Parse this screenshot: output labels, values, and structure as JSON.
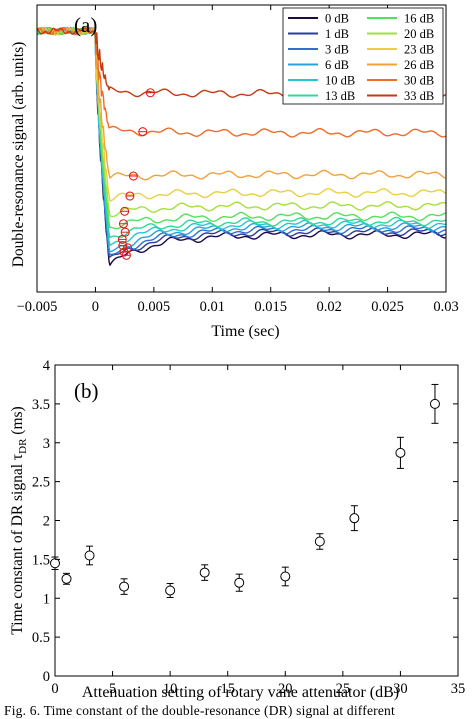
{
  "chart_data": [
    {
      "type": "line",
      "panel_label": "(a)",
      "xlabel": "Time (sec)",
      "ylabel": "Double-resonance signal (arb. units)",
      "xlim": [
        -0.005,
        0.03
      ],
      "x_ticks": [
        "−0.005",
        "0",
        "0.005",
        "0.01",
        "0.015",
        "0.02",
        "0.025",
        "0.03"
      ],
      "x_tick_values": [
        -0.005,
        0,
        0.005,
        0.01,
        0.015,
        0.02,
        0.025,
        0.03
      ],
      "ylim": [
        -1.0,
        0.1
      ],
      "y_ticks_shown": false,
      "grid": false,
      "legend": "top-right",
      "baseline": 0.0,
      "series": [
        {
          "name": "0 dB",
          "color": "#1a0a4a",
          "min": -0.9,
          "final": -0.78,
          "tau_ms": 1.45
        },
        {
          "name": "1 dB",
          "color": "#2b3d9e",
          "min": -0.88,
          "final": -0.77,
          "tau_ms": 1.25
        },
        {
          "name": "3 dB",
          "color": "#2f6fd1",
          "min": -0.87,
          "final": -0.76,
          "tau_ms": 1.55
        },
        {
          "name": "6 dB",
          "color": "#2aa0e0",
          "min": -0.85,
          "final": -0.75,
          "tau_ms": 1.15
        },
        {
          "name": "10 dB",
          "color": "#26c6d0",
          "min": -0.82,
          "final": -0.74,
          "tau_ms": 1.1
        },
        {
          "name": "13 dB",
          "color": "#2fd89a",
          "min": -0.79,
          "final": -0.73,
          "tau_ms": 1.35
        },
        {
          "name": "16 dB",
          "color": "#55e05a",
          "min": -0.75,
          "final": -0.71,
          "tau_ms": 1.2
        },
        {
          "name": "20 dB",
          "color": "#a4e03a",
          "min": -0.7,
          "final": -0.67,
          "tau_ms": 1.3
        },
        {
          "name": "23 dB",
          "color": "#e8d040",
          "min": -0.64,
          "final": -0.62,
          "tau_ms": 1.75
        },
        {
          "name": "26 dB",
          "color": "#f4a03a",
          "min": -0.56,
          "final": -0.55,
          "tau_ms": 2.05
        },
        {
          "name": "30 dB",
          "color": "#f06a28",
          "min": -0.38,
          "final": -0.39,
          "tau_ms": 2.85
        },
        {
          "name": "33 dB",
          "color": "#c03a12",
          "min": -0.23,
          "final": -0.24,
          "tau_ms": 3.5
        }
      ]
    },
    {
      "type": "scatter",
      "panel_label": "(b)",
      "xlabel": "Attenuation setting of rotary vane attenuator (dB)",
      "ylabel": "Time constant of DR signal τ",
      "ylabel_sub": "DR",
      "ylabel_unit": " (ms)",
      "xlim": [
        0,
        35
      ],
      "ylim": [
        0,
        4
      ],
      "x_ticks": [
        "0",
        "5",
        "10",
        "15",
        "20",
        "25",
        "30",
        "35"
      ],
      "x_tick_values": [
        0,
        5,
        10,
        15,
        20,
        25,
        30,
        35
      ],
      "y_ticks": [
        "0",
        "0.5",
        "1",
        "1.5",
        "2",
        "2.5",
        "3",
        "3.5",
        "4"
      ],
      "y_tick_values": [
        0,
        0.5,
        1,
        1.5,
        2,
        2.5,
        3,
        3.5,
        4
      ],
      "grid": false,
      "marker": "open-circle",
      "points": [
        {
          "x": 0,
          "y": 1.45,
          "err": 0.08
        },
        {
          "x": 1,
          "y": 1.25,
          "err": 0.07
        },
        {
          "x": 3,
          "y": 1.55,
          "err": 0.12
        },
        {
          "x": 6,
          "y": 1.15,
          "err": 0.1
        },
        {
          "x": 10,
          "y": 1.1,
          "err": 0.09
        },
        {
          "x": 13,
          "y": 1.33,
          "err": 0.1
        },
        {
          "x": 16,
          "y": 1.2,
          "err": 0.11
        },
        {
          "x": 20,
          "y": 1.28,
          "err": 0.12
        },
        {
          "x": 23,
          "y": 1.73,
          "err": 0.1
        },
        {
          "x": 26,
          "y": 2.03,
          "err": 0.16
        },
        {
          "x": 30,
          "y": 2.87,
          "err": 0.2
        },
        {
          "x": 33,
          "y": 3.5,
          "err": 0.25
        }
      ]
    }
  ],
  "caption": "Fig. 6.   Time constant of the double-resonance (DR) signal at different"
}
